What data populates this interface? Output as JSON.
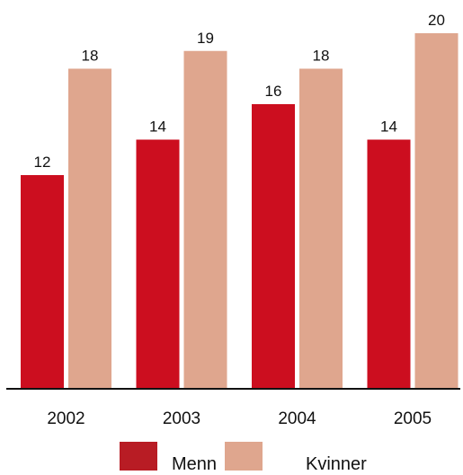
{
  "chart_data": {
    "type": "bar",
    "title": "",
    "xlabel": "",
    "ylabel": "",
    "categories": [
      "2002",
      "2003",
      "2004",
      "2005"
    ],
    "series": [
      {
        "name": "Menn",
        "values": [
          12,
          14,
          16,
          14
        ],
        "color": "#cc0e1f",
        "legend_color": "#b81c24"
      },
      {
        "name": "Kvinner",
        "values": [
          18,
          19,
          18,
          20
        ],
        "color": "#dfa68e",
        "legend_color": "#dfa68e"
      }
    ],
    "ylim": [
      0,
      20
    ],
    "grid": false,
    "data_labels": true,
    "legend": "bottom"
  }
}
